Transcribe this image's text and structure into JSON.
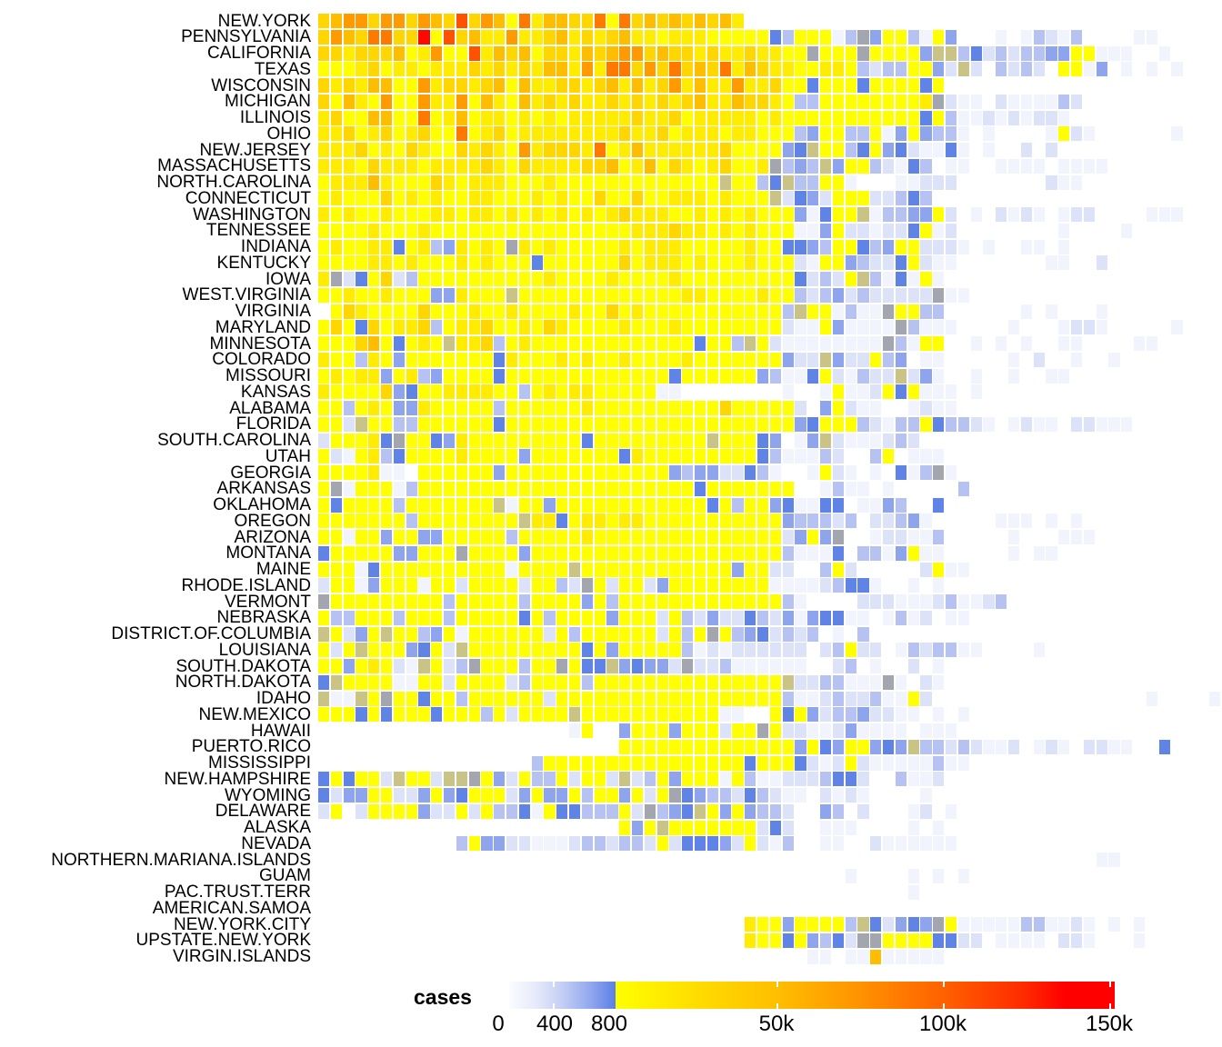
{
  "chart_data": {
    "type": "heatmap",
    "title": "",
    "xlabel": "",
    "ylabel": "",
    "legend": {
      "title": "cases",
      "placement": "bottom",
      "ticks": [
        {
          "label": "0",
          "value": 0
        },
        {
          "label": "400",
          "value": 400
        },
        {
          "label": "800",
          "value": 800
        },
        {
          "label": "50k",
          "value": 50000
        },
        {
          "label": "100k",
          "value": 100000
        },
        {
          "label": "150k",
          "value": 150000
        }
      ]
    },
    "levels": {
      "a": {
        "cases": 50,
        "color": "#f1f3fd"
      },
      "b": {
        "cases": 200,
        "color": "#dce2f8"
      },
      "c": {
        "cases": 400,
        "color": "#b6c3f2"
      },
      "d": {
        "cases": 600,
        "color": "#8ea5ee"
      },
      "e": {
        "cases": 800,
        "color": "#5f84e6"
      },
      "g": {
        "cases": 700,
        "color": "#a3a6ae"
      },
      "h": {
        "cases": 900,
        "color": "#c9c485"
      },
      "0": {
        "cases": 1000,
        "color": "#ffff00"
      },
      "1": {
        "cases": 12000,
        "color": "#ffec00"
      },
      "2": {
        "cases": 25000,
        "color": "#ffd600"
      },
      "3": {
        "cases": 40000,
        "color": "#ffbd00"
      },
      "4": {
        "cases": 60000,
        "color": "#ff9a00"
      },
      "5": {
        "cases": 80000,
        "color": "#ff7800"
      },
      "6": {
        "cases": 100000,
        "color": "#ff5200"
      },
      "7": {
        "cases": 140000,
        "color": "#ff0800"
      }
    },
    "rows": [
      {
        "label": "NEW.YORK",
        "start": 0,
        "cells": "2344244243262430513322505232323231"
      },
      {
        "label": "PENNSYLVANIA",
        "start": 0,
        "cells": "243255227062311411231212311011100000ec000acgd00ca0d...a.acbac....aa"
      },
      {
        "label": "CALIFORNIA",
        "start": 0,
        "cells": "221222301400613230221323442322121121100g000g0000dhhcebcbccdd00aaa..a"
      },
      {
        "label": "TEXAS",
        "start": 0,
        "cells": "0001201101112121213314155242523251321100110cbcc00dbhb.cbcb.00ad.a.a.a"
      },
      {
        "label": "WISCONSIN",
        "start": 0,
        "cells": "212133004122123031122123131241311411200e000e0000e0"
      },
      {
        "label": "MICHIGAN",
        "start": 0,
        "cells": "20310400411403103121211212121231132210cc000000001gbaa.baaaacb"
      },
      {
        "label": "ILLINOIS",
        "start": 0,
        "cells": "120033005013011010101111121120111110100000000000e0caabababba"
      },
      {
        "label": "OHIO",
        "start": 0,
        "cells": "11201201200501201111111121120111011000cd00cc0ad0dcca.a....a0ba......a"
      },
      {
        "label": "NEW.JERSEY",
        "start": 0,
        "cells": "1112010210021210412221501311111120000deh00ce0debaaea.a..b.b"
      },
      {
        "label": "MASSACHUSETTS",
        "start": 0,
        "cells": "111021110111121021111223013021012001gcdchd00cbaec.aa..aaaa.aaaa"
      },
      {
        "label": "NORTH.CAROLINA",
        "start": 0,
        "cells": "01113100021011100010000000000000h00cehcc00a...aabbb.......baa"
      },
      {
        "label": "CONNECTICUT",
        "start": 0,
        "cells": "010002010100110001010020020011101000hbedb000bbcec"
      },
      {
        "label": "WASHINGTON",
        "start": 0,
        "cells": "10100100011011010101010121110010101000dae00haccdd0b.a.baba.abb....aaa"
      },
      {
        "label": "TENNESSEE",
        "start": 0,
        "cells": "00001000100000000000000001112110101000aad0bbabbe0ab........a....a"
      },
      {
        "label": "INDIANA",
        "start": 0,
        "cells": "010011e01cd1010g101000001011100000100eedc00ecd00bbba.a..aa.a"
      },
      {
        "label": "KENTUCKY",
        "start": 0,
        "cells": "00001101000101000e00000020111010001000ba00dcbbe0baa.......aa..b"
      },
      {
        "label": "IOWA",
        "start": 0,
        "cells": "1gbe02bc000000000010000100001000000000ebcb0hcaea0a"
      },
      {
        "label": "WEST.VIRGINIA",
        "start": 0,
        "cells": "001001000dd1000h0000000000000110000100cbcdbcbbbbbgaa"
      },
      {
        "label": "VIRGINIA",
        "start": 0,
        "cells": ".021000020001001000010020100000000000ch00acaag00cc......a.a...a"
      },
      {
        "label": "MARYLAND",
        "start": 0,
        "cells": "020e20112c011200102100001000100000000baa0daaaagcaaa....a...abba.....a"
      },
      {
        "label": "MINNESOTA",
        "start": 0,
        "cells": "000230e010h112c010000000000000e00ch0baaaaaaaagca00..a.a.a..aa....aa"
      },
      {
        "label": "COLORADO",
        "start": 0,
        "cells": "100c10d0000000e1000101001000010000000dbbhdbb0cd.aa.....a.b..a..a"
      },
      {
        "label": "MISSOURI",
        "start": 0,
        "cells": "01011d01cd0000e0000000000000e000000dcaae0bacbbhbda..a..a..aa"
      },
      {
        "label": "KANSAS",
        "start": 0,
        "cells": "100002de00111100c0101100000aa........a..a0aab0e0aaa.a"
      },
      {
        "label": "ALABAMA",
        "start": 0,
        "cells": "00c010dd100000c00000010000000000200000b.d0baa..abaa"
      },
      {
        "label": "FLORIDA",
        "start": 0,
        "cells": "00bh00cc000000e00000000000000000000000de000cbacc0eccba.abaa.bbaaa"
      },
      {
        "label": "SOUTH.CAROLINA",
        "start": 0,
        "cells": "b0001eg00ed1000000000e000000000h000ed.adhbaaabcb"
      },
      {
        "label": "UTAH",
        "start": 0,
        "cells": "0ba01ce000010000d0000000e1000000000ecaaacb..c0.aaa"
      },
      {
        "label": "GEORGIA",
        "start": 0,
        "cells": "00001aa.000000d0000000000000dcddbbeca..a0ba.a.eacga"
      },
      {
        "label": "ARKANSAS",
        "start": 0,
        "cells": "0ga000ac0000000000000000000000e0000000..acaa.a.....c"
      },
      {
        "label": "OKLAHOMA",
        "start": 0,
        "cells": "0e0000c0000000ha00d000000000000e0c00deaaee.aadc..e"
      },
      {
        "label": "OREGON",
        "start": 0,
        "cells": "0000000c00000000h11e01101100000000000dcccbc.bbcda.....aaa.a.a"
      },
      {
        "label": "ARIZONA",
        "start": 0,
        "cells": "00a00d00dd00000c000001000000000000000bd0dg..abbaac.....a...aaa"
      },
      {
        "label": "MONTANA",
        "start": 0,
        "cells": "e00000dd000g0000d00000000000000000000caaae.ccad0aa.....a.aa"
      },
      {
        "label": "MAINE",
        "start": 0,
        "cells": "000ae0000000000a0000h000000000000d00bb..c0b.....b0aa"
      },
      {
        "label": "RHODE.ISLAND",
        "start": 0,
        "cells": "b00ad000a00b0000b00cbg0b00bd00000000aaaabceea..a.a"
      },
      {
        "label": "VERMONT",
        "start": 0,
        "cells": "g000000000c00000c0000d0c0000000000000ca....bbbaaabcaabc"
      },
      {
        "label": "NEBRASKA",
        "start": 0,
        "cells": "0cc000c000c00000e0c0000d000b0cbdbbecbdadeeaa.acab.aa"
      },
      {
        "label": "DISTRICT.OF.COLUMBIA",
        "start": 0,
        "cells": "h0bd0h00cd0a000000b0c000000b0c0g0cdebcbc.a.c"
      },
      {
        "label": "LOUISIANA",
        "start": 0,
        "cells": "0b0h000de0bh000000000e0d00000cababbbbbb.bc0bb.acbccaa....a"
      },
      {
        "label": "SOUTH.DAKOTA",
        "start": 0,
        "cells": "00d010bah0bcg000c00g0eehdeddbgbbcaaaaaa..bc.a..b.a"
      },
      {
        "label": "NORTH.DAKOTA",
        "start": 0,
        "cells": "eh0000aa00b0000bc0000c000000000000000hbbccaaaga.ba"
      },
      {
        "label": "IDAHO",
        "start": 0,
        "cells": "haah0g00e00c000000b000000000000000000caabcbbcaa0b.................a....a"
      },
      {
        "label": "NEW.MEXICO",
        "start": 0,
        "cells": "000e0e000e000c0b0000h00000000000aa..0e0dbccdbbaa.a.a"
      },
      {
        "label": "HAWAII",
        "start": 20,
        "cells": "a0..d000d000b00g0bbaabdaaaa.aaa"
      },
      {
        "label": "PUERTO.RICO",
        "start": 24,
        "cells": "00000000000000d0ed00dedhccbcbaab.aba.bbaa..e"
      },
      {
        "label": "MISSISSIPPI",
        "start": 17,
        "cells": "c0000000000000000e000ebab0baaaaacaa"
      },
      {
        "label": "NEW.HAMPSHIRE",
        "start": 0,
        "cells": "e0e00bh00bhhg0db0cc0b00bhbc0d000a0caabbbceeb..caab"
      },
      {
        "label": "WYOMING",
        "start": 0,
        "cells": "ebdd00bbd0de000bd0dd0c00d0b0gedccbecbaa.baba....a"
      },
      {
        "label": "DELAWARE",
        "start": 0,
        "cells": "b0.b0000dbb0b0ccea0eeccc0bgcdeh0d0dccb..dc.b...ab.a"
      },
      {
        "label": "ALASKA",
        "start": 24,
        "cells": "0d0h0000000beb..aaa....a.a"
      },
      {
        "label": "NEVADA",
        "start": 11,
        "cells": "c0ddbbaaabccbccb0beeedb0bac..aa..baaaaaa"
      },
      {
        "label": "NORTHERN.MARIANA.ISLANDS",
        "start": 62,
        "cells": "aa"
      },
      {
        "label": "GUAM",
        "start": 42,
        "cells": "a....a.a.a"
      },
      {
        "label": "PAC.TRUST.TERR",
        "start": 47,
        "cells": "a"
      },
      {
        "label": "AMERICAN.SAMOA",
        "start": 0,
        "cells": ""
      },
      {
        "label": "NEW.YORK.CITY",
        "start": 34,
        "cells": "100d0000chebdedg0aaaaaccaaba.a.a"
      },
      {
        "label": "UPSTATE.NEW.YORK",
        "start": 34,
        "cells": "100e0dcebgg0000eebb.aaaa.bba...a"
      },
      {
        "label": "VIRGIN.ISLANDS",
        "start": 39,
        "cells": "aa.aa3aaaaa"
      }
    ]
  }
}
